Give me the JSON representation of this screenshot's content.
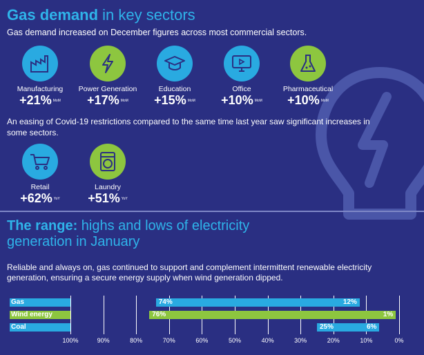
{
  "header": {
    "title_bold": "Gas demand",
    "title_rest": " in key sectors",
    "subtitle": "Gas demand increased on December figures across most commercial sectors."
  },
  "sectors": [
    {
      "label": "Manufacturing",
      "value": "+21%",
      "unit": "MoM",
      "icon": "factory-icon",
      "color": "blue"
    },
    {
      "label": "Power Generation",
      "value": "+17%",
      "unit": "MoM",
      "icon": "lightning-icon",
      "color": "green"
    },
    {
      "label": "Education",
      "value": "+15%",
      "unit": "MoM",
      "icon": "graduation-cap-icon",
      "color": "blue"
    },
    {
      "label": "Office",
      "value": "+10%",
      "unit": "MoM",
      "icon": "monitor-icon",
      "color": "blue"
    },
    {
      "label": "Pharmaceutical",
      "value": "+10%",
      "unit": "MoM",
      "icon": "flask-icon",
      "color": "green"
    }
  ],
  "easing_text": "An easing of Covid-19 restrictions compared to the same time last year saw significant increases in some sectors.",
  "yoy_sectors": [
    {
      "label": "Retail",
      "value": "+62%",
      "unit": "YoY",
      "icon": "shopping-cart-icon",
      "color": "blue"
    },
    {
      "label": "Laundry",
      "value": "+51%",
      "unit": "YoY",
      "icon": "washing-machine-icon",
      "color": "green"
    }
  ],
  "range": {
    "title_bold": "The range:",
    "title_rest": " highs and lows of electricity",
    "title_line2": "generation in  January",
    "paragraph": "Reliable and always on, gas continued to support and complement intermittent renewable electricity generation, ensuring a secure energy supply when wind generation dipped."
  },
  "colors": {
    "background": "#2a2f82",
    "blue": "#29aae1",
    "green": "#8dc63f",
    "title": "#2fb4ea"
  },
  "chart_data": {
    "type": "bar",
    "categories": [
      "Gas",
      "Wind energy",
      "Coal"
    ],
    "series": [
      {
        "name": "",
        "values": [
          [
            74,
            12
          ],
          [
            76,
            1
          ],
          [
            25,
            6
          ]
        ]
      }
    ],
    "value_labels": [
      [
        "74%",
        "12%"
      ],
      [
        "76%",
        "1%"
      ],
      [
        "25%",
        "6%"
      ]
    ],
    "axis_ticks": [
      "100%",
      "90%",
      "80%",
      "70%",
      "60%",
      "50%",
      "40%",
      "30%",
      "20%",
      "10%",
      "0%"
    ],
    "xlim": [
      100,
      0
    ],
    "grid": true
  }
}
